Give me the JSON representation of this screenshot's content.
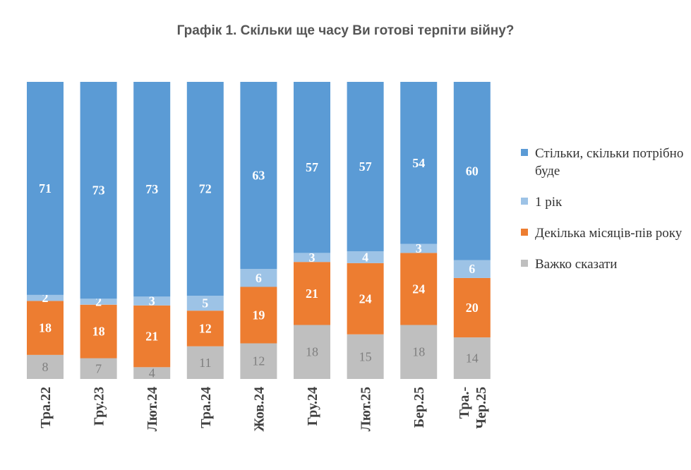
{
  "chart_data": {
    "type": "bar",
    "stacked": true,
    "title": "Графік 1. Скільки ще часу Ви готові терпіти війну?",
    "categories": [
      [
        "Тра.22"
      ],
      [
        "Гру.23"
      ],
      [
        "Лют.24"
      ],
      [
        "Тра.24"
      ],
      [
        "Жов.24"
      ],
      [
        "Гру.24"
      ],
      [
        "Лют.25"
      ],
      [
        "Бер.25"
      ],
      [
        "Тра.-",
        "Чер.25"
      ]
    ],
    "series": [
      {
        "name": "Важко сказати",
        "color": "#BFBFBF",
        "label_color": "#7F7F7F",
        "values": [
          8,
          7,
          4,
          11,
          12,
          18,
          15,
          18,
          14
        ]
      },
      {
        "name": "Декілька місяців-пів року",
        "color": "#ED7D31",
        "label_color": "#FFFFFF",
        "values": [
          18,
          18,
          21,
          12,
          19,
          21,
          24,
          24,
          20
        ]
      },
      {
        "name": "1 рік",
        "color": "#9DC3E6",
        "label_color": "#FFFFFF",
        "values": [
          2,
          2,
          3,
          5,
          6,
          3,
          4,
          3,
          6
        ]
      },
      {
        "name": "Стільки, скільки потрібно буде",
        "color": "#5B9BD5",
        "label_color": "#FFFFFF",
        "values": [
          71,
          73,
          73,
          72,
          63,
          57,
          57,
          54,
          60
        ]
      }
    ],
    "legend_order": [
      3,
      2,
      1,
      0
    ],
    "legend_position": "right",
    "xlabel": "",
    "ylabel": ""
  }
}
